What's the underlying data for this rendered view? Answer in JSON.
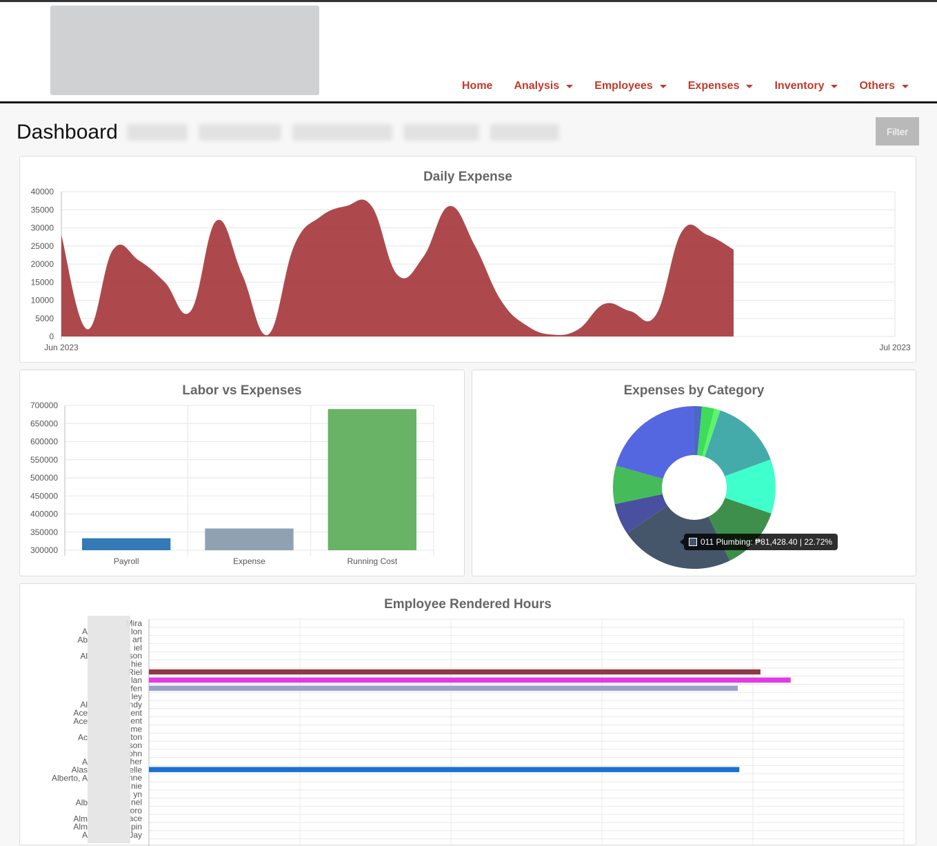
{
  "nav": {
    "items": [
      {
        "label": "Home",
        "dropdown": false
      },
      {
        "label": "Analysis",
        "dropdown": true
      },
      {
        "label": "Employees",
        "dropdown": true
      },
      {
        "label": "Expenses",
        "dropdown": true
      },
      {
        "label": "Inventory",
        "dropdown": true
      },
      {
        "label": "Others",
        "dropdown": true
      }
    ]
  },
  "page": {
    "title": "Dashboard",
    "filter_label": "Filter"
  },
  "colors": {
    "nav_accent": "#c0392b",
    "daily_area": "#a63a3d",
    "payroll": "#337ab7",
    "expense": "#8ea2b2",
    "running_cost": "#68b366"
  },
  "chart_data": [
    {
      "type": "area",
      "title": "Daily Expense",
      "x_start_label": "Jun 2023",
      "x_end_label": "Jul 2023",
      "x": [
        "2023-06-01",
        "2023-06-02",
        "2023-06-03",
        "2023-06-04",
        "2023-06-05",
        "2023-06-06",
        "2023-06-07",
        "2023-06-08",
        "2023-06-09",
        "2023-06-10",
        "2023-06-11",
        "2023-06-12",
        "2023-06-13",
        "2023-06-14",
        "2023-06-15",
        "2023-06-16",
        "2023-06-17",
        "2023-06-18",
        "2023-06-19",
        "2023-06-20",
        "2023-06-21",
        "2023-06-22",
        "2023-06-23",
        "2023-06-24",
        "2023-06-25"
      ],
      "values": [
        28000,
        2000,
        24000,
        21000,
        15000,
        7000,
        32000,
        17000,
        500,
        25000,
        33000,
        36000,
        36000,
        17000,
        22000,
        36000,
        25000,
        10000,
        3000,
        500,
        2000,
        9000,
        7000,
        6000,
        29000
      ],
      "tail_values": [
        28000,
        24000
      ],
      "yticks": [
        0,
        5000,
        10000,
        15000,
        20000,
        25000,
        30000,
        35000,
        40000
      ],
      "ylim": [
        0,
        40000
      ]
    },
    {
      "type": "bar",
      "title": "Labor vs Expenses",
      "categories": [
        "Payroll",
        "Expense",
        "Running Cost"
      ],
      "values": [
        333000,
        360000,
        690000
      ],
      "yticks": [
        300000,
        350000,
        400000,
        450000,
        500000,
        550000,
        600000,
        650000,
        700000
      ],
      "ylim": [
        300000,
        700000
      ]
    },
    {
      "type": "pie",
      "title": "Expenses by Category",
      "slices": [
        {
          "value": 1.5,
          "color": "#4b68c4"
        },
        {
          "value": 2.5,
          "color": "#3ddc5b"
        },
        {
          "value": 1.2,
          "color": "#5cf56b"
        },
        {
          "value": 14.2,
          "color": "#45aaaa"
        },
        {
          "value": 10.8,
          "color": "#3fffcc"
        },
        {
          "value": 12.6,
          "color": "#3f8f4c"
        },
        {
          "value": 22.72,
          "color": "#45566b"
        },
        {
          "value": 6.2,
          "color": "#4a50a0"
        },
        {
          "value": 7.6,
          "color": "#45bb5a"
        },
        {
          "value": 20.68,
          "color": "#5567e0"
        }
      ],
      "tooltip": "011 Plumbing: ₱81,428.40 | 22.72%"
    },
    {
      "type": "bar",
      "orientation": "horizontal",
      "title": "Employee Rendered Hours",
      "visible_rows": 28,
      "bars": [
        {
          "row": 6,
          "value": 0.81,
          "color": "#8b3a48"
        },
        {
          "row": 7,
          "value": 0.85,
          "color": "#e23ae6"
        },
        {
          "row": 8,
          "value": 0.78,
          "color": "#9aa0cc"
        },
        {
          "row": 18,
          "value": 0.782,
          "color": "#1a6fd0"
        }
      ],
      "label_fragments": [
        "Mira",
        "lon",
        "art",
        "iel",
        "son",
        "hie",
        "Riel",
        "lan",
        "fen",
        "ley",
        "ndy",
        "ent",
        "ent",
        "me",
        "ton",
        "son",
        "ohn",
        "her",
        "elle",
        "nne",
        "nie",
        "yn",
        "nel",
        "oro",
        "ace",
        "pin",
        "Jay"
      ],
      "label_prefixes": [
        "",
        "A",
        "Ab",
        "",
        "Al",
        "",
        "",
        "",
        "",
        "",
        "Al",
        "Ace",
        "Ace",
        "",
        "Ac",
        "",
        "",
        "A",
        "Alas",
        "Alberto, A",
        "",
        "",
        "Alb",
        "",
        "Alm",
        "Alm",
        "A",
        ""
      ]
    }
  ]
}
